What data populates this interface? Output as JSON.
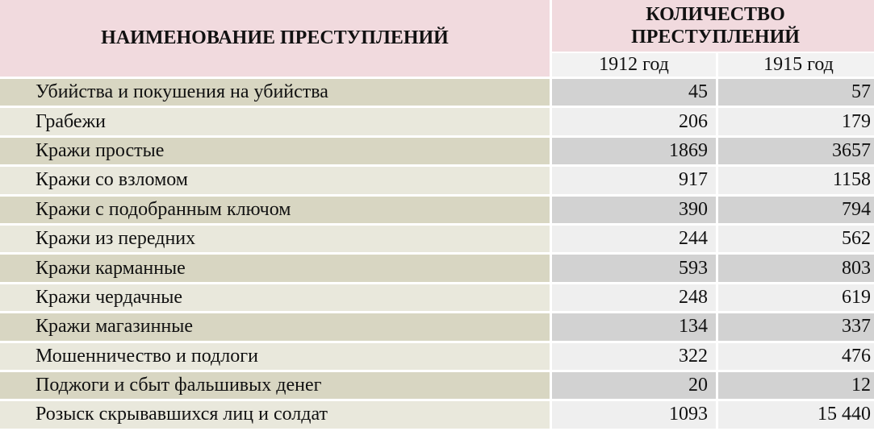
{
  "table": {
    "header_name": "НАИМЕНОВАНИЕ ПРЕСТУПЛЕНИЙ",
    "header_qty_line1": "КОЛИЧЕСТВО",
    "header_qty_line2": "ПРЕСТУПЛЕНИЙ",
    "year1": "1912 год",
    "year2": "1915 год",
    "rows": [
      {
        "name": "Убийства и покушения на убийства",
        "v1912": "45",
        "v1915": "57"
      },
      {
        "name": "Грабежи",
        "v1912": "206",
        "v1915": "179"
      },
      {
        "name": "Кражи простые",
        "v1912": "1869",
        "v1915": "3657"
      },
      {
        "name": "Кражи со взломом",
        "v1912": "917",
        "v1915": "1158"
      },
      {
        "name": "Кражи с подобранным ключом",
        "v1912": "390",
        "v1915": "794"
      },
      {
        "name": "Кражи из передних",
        "v1912": "244",
        "v1915": "562"
      },
      {
        "name": "Кражи карманные",
        "v1912": "593",
        "v1915": "803"
      },
      {
        "name": "Кражи чердачные",
        "v1912": "248",
        "v1915": "619"
      },
      {
        "name": "Кражи магазинные",
        "v1912": "134",
        "v1915": "337"
      },
      {
        "name": "Мошенничество и подлоги",
        "v1912": "322",
        "v1915": "476"
      },
      {
        "name": "Поджоги и сбыт фальшивых денег",
        "v1912": "20",
        "v1915": "12"
      },
      {
        "name": "Розыск скрывавшихся лиц и солдат",
        "v1912": "1093",
        "v1915": "15 440"
      }
    ]
  },
  "colors": {
    "header_pink": "#f1dade",
    "year_header": "#f2f2f2",
    "name_odd": "#d8d6c2",
    "name_even": "#e9e8dc",
    "num_odd": "#d2d2d2",
    "num_even": "#efefef"
  }
}
